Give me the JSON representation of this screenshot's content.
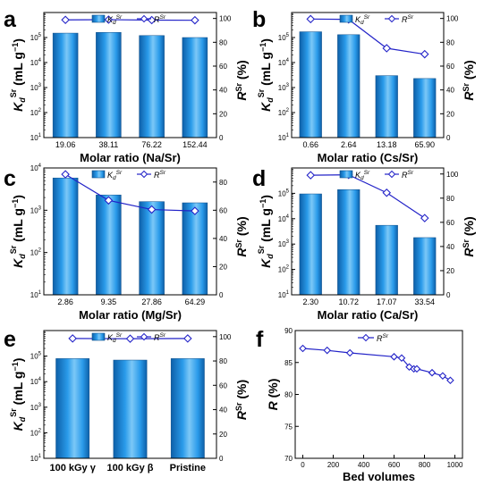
{
  "colors": {
    "bar_top": "#1f8fe0",
    "bar_mid": "#56b4f2",
    "bar_edge": "#0f4f8a",
    "line": "#2323c8",
    "marker_fill": "#ffffff"
  },
  "chart_data": [
    {
      "panel": "a",
      "type": "bar",
      "categories": [
        "19.06",
        "38.11",
        "76.22",
        "152.44"
      ],
      "xlabel": "Molar ratio (Na/Sr)",
      "ylabel_left": {
        "main": "K",
        "sub": "d",
        "sup": "Sr",
        "unit": "(mL g",
        "unit_sup": "−1",
        "close": ")"
      },
      "ylabel_right": {
        "main": "R",
        "sup": "Sr",
        "unit": "(%)"
      },
      "yscale_left": "log",
      "ylim_left": [
        10,
        1000000
      ],
      "yticks_left": [
        {
          "label": "10",
          "sup": "1"
        },
        {
          "label": "10",
          "sup": "2"
        },
        {
          "label": "10",
          "sup": "3"
        },
        {
          "label": "10",
          "sup": "4"
        },
        {
          "label": "10",
          "sup": "5"
        }
      ],
      "ylim_right": [
        0,
        105
      ],
      "yticks_right": [
        "0",
        "20",
        "40",
        "60",
        "80",
        "100"
      ],
      "series": [
        {
          "name": "K_d^Sr",
          "kind": "bar",
          "axis": "left",
          "values": [
            150000,
            160000,
            120000,
            100000
          ]
        },
        {
          "name": "R^Sr",
          "kind": "line",
          "axis": "right",
          "values": [
            98.8,
            99.0,
            98.6,
            98.5
          ]
        }
      ],
      "legend": [
        {
          "label": "K",
          "sub": "d",
          "sup": "Sr"
        },
        {
          "label": "R",
          "sup": "Sr"
        }
      ]
    },
    {
      "panel": "b",
      "type": "bar",
      "categories": [
        "0.66",
        "2.64",
        "13.18",
        "65.90"
      ],
      "xlabel": "Molar ratio (Cs/Sr)",
      "ylabel_left": {
        "main": "K",
        "sub": "d",
        "sup": "Sr",
        "unit": "(mL g",
        "unit_sup": "−1",
        "close": ")"
      },
      "ylabel_right": {
        "main": "R",
        "sup": "Sr",
        "unit": "(%)"
      },
      "yscale_left": "log",
      "ylim_left": [
        10,
        1000000
      ],
      "yticks_left": [
        {
          "label": "10",
          "sup": "1"
        },
        {
          "label": "10",
          "sup": "2"
        },
        {
          "label": "10",
          "sup": "3"
        },
        {
          "label": "10",
          "sup": "4"
        },
        {
          "label": "10",
          "sup": "5"
        }
      ],
      "ylim_right": [
        0,
        105
      ],
      "yticks_right": [
        "0",
        "20",
        "40",
        "60",
        "80",
        "100"
      ],
      "series": [
        {
          "name": "K_d^Sr",
          "kind": "bar",
          "axis": "left",
          "values": [
            170000,
            130000,
            3000,
            2300
          ]
        },
        {
          "name": "R^Sr",
          "kind": "line",
          "axis": "right",
          "values": [
            99.5,
            99.2,
            75.0,
            70.0
          ]
        }
      ],
      "legend": [
        {
          "label": "K",
          "sub": "d",
          "sup": "Sr"
        },
        {
          "label": "R",
          "sup": "Sr"
        }
      ]
    },
    {
      "panel": "c",
      "type": "bar",
      "categories": [
        "2.86",
        "9.35",
        "27.86",
        "64.29"
      ],
      "xlabel": "Molar ratio (Mg/Sr)",
      "ylabel_left": {
        "main": "K",
        "sub": "d",
        "sup": "Sr",
        "unit": "(mL g",
        "unit_sup": "−1",
        "close": ")"
      },
      "ylabel_right": {
        "main": "R",
        "sup": "Sr",
        "unit": "(%)"
      },
      "yscale_left": "log",
      "ylim_left": [
        10,
        10000
      ],
      "yticks_left": [
        {
          "label": "10",
          "sup": "1"
        },
        {
          "label": "10",
          "sup": "2"
        },
        {
          "label": "10",
          "sup": "3"
        },
        {
          "label": "10",
          "sup": "4"
        }
      ],
      "ylim_right": [
        0,
        90
      ],
      "yticks_right": [
        "0",
        "20",
        "40",
        "60",
        "80"
      ],
      "series": [
        {
          "name": "K_d^Sr",
          "kind": "bar",
          "axis": "left",
          "values": [
            5800,
            2300,
            1600,
            1500
          ]
        },
        {
          "name": "R^Sr",
          "kind": "line",
          "axis": "right",
          "values": [
            85.5,
            67.0,
            60.5,
            59.5
          ]
        }
      ],
      "legend": [
        {
          "label": "K",
          "sub": "d",
          "sup": "Sr"
        },
        {
          "label": "R",
          "sup": "Sr"
        }
      ]
    },
    {
      "panel": "d",
      "type": "bar",
      "categories": [
        "2.30",
        "10.72",
        "17.07",
        "33.54"
      ],
      "xlabel": "Molar ratio (Ca/Sr)",
      "ylabel_left": {
        "main": "K",
        "sub": "d",
        "sup": "Sr",
        "unit": "(mL g",
        "unit_sup": "−1",
        "close": ")"
      },
      "ylabel_right": {
        "main": "R",
        "sup": "Sr",
        "unit": "(%)"
      },
      "yscale_left": "log",
      "ylim_left": [
        10,
        1000000
      ],
      "yticks_left": [
        {
          "label": "10",
          "sup": "1"
        },
        {
          "label": "10",
          "sup": "2"
        },
        {
          "label": "10",
          "sup": "3"
        },
        {
          "label": "10",
          "sup": "4"
        },
        {
          "label": "10",
          "sup": "5"
        }
      ],
      "ylim_right": [
        0,
        105
      ],
      "yticks_right": [
        "0",
        "20",
        "40",
        "60",
        "80",
        "100"
      ],
      "series": [
        {
          "name": "K_d^Sr",
          "kind": "bar",
          "axis": "left",
          "values": [
            95000,
            140000,
            5500,
            1800
          ]
        },
        {
          "name": "R^Sr",
          "kind": "line",
          "axis": "right",
          "values": [
            99.0,
            99.3,
            84.5,
            63.5
          ]
        }
      ],
      "legend": [
        {
          "label": "K",
          "sub": "d",
          "sup": "Sr"
        },
        {
          "label": "R",
          "sup": "Sr"
        }
      ]
    },
    {
      "panel": "e",
      "type": "bar",
      "categories": [
        "100 kGy γ",
        "100 kGy β",
        "Pristine"
      ],
      "xlabel": "",
      "ylabel_left": {
        "main": "K",
        "sub": "d",
        "sup": "Sr",
        "unit": "(mL g",
        "unit_sup": "−1",
        "close": ")"
      },
      "ylabel_right": {
        "main": "R",
        "sup": "Sr",
        "unit": "(%)"
      },
      "yscale_left": "log",
      "ylim_left": [
        10,
        1000000
      ],
      "yticks_left": [
        {
          "label": "10",
          "sup": "1"
        },
        {
          "label": "10",
          "sup": "2"
        },
        {
          "label": "10",
          "sup": "3"
        },
        {
          "label": "10",
          "sup": "4"
        },
        {
          "label": "10",
          "sup": "5"
        }
      ],
      "ylim_right": [
        0,
        105
      ],
      "yticks_right": [
        "0",
        "20",
        "40",
        "60",
        "80",
        "100"
      ],
      "series": [
        {
          "name": "K_d^Sr",
          "kind": "bar",
          "axis": "left",
          "values": [
            80000,
            70000,
            80000
          ]
        },
        {
          "name": "R^Sr",
          "kind": "line",
          "axis": "right",
          "values": [
            98.5,
            98.3,
            98.5
          ]
        }
      ],
      "legend": [
        {
          "label": "K",
          "sub": "d",
          "sup": "Sr"
        },
        {
          "label": "R",
          "sup": "Sr"
        }
      ]
    },
    {
      "panel": "f",
      "type": "line",
      "x": [
        0,
        160,
        310,
        600,
        650,
        700,
        730,
        750,
        850,
        920,
        970
      ],
      "y": [
        87.2,
        86.9,
        86.5,
        85.9,
        85.7,
        84.3,
        84.0,
        84.0,
        83.4,
        82.9,
        82.2
      ],
      "xlabel": "Bed volumes",
      "ylabel": "R (%)",
      "xlim": [
        -50,
        1050
      ],
      "ylim": [
        70,
        90
      ],
      "xticks": [
        "0",
        "200",
        "400",
        "600",
        "800",
        "1000"
      ],
      "yticks": [
        "70",
        "75",
        "80",
        "85",
        "90"
      ],
      "series_name": {
        "label": "R",
        "sup": "Sr"
      }
    }
  ]
}
